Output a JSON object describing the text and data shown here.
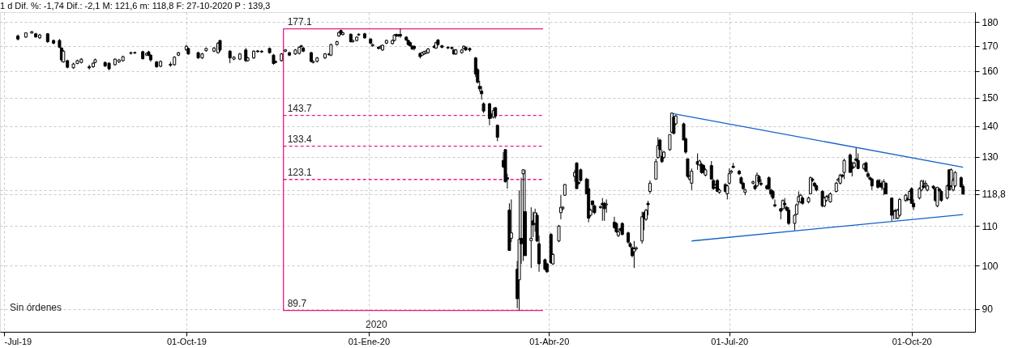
{
  "chart_data": {
    "type": "candlestick",
    "title": "1 d Dif. %: -1,74 Dif.: -2,1 M: 121,6 m: 118,8 F: 27-10-2020 P : 139,3",
    "color": "#000000",
    "x": [
      "2019-07-08",
      "2019-07-12",
      "2019-07-15",
      "2019-07-17",
      "2019-07-19",
      "2019-07-23",
      "2019-07-26",
      "2019-07-29",
      "2019-07-30",
      "2019-07-31",
      "2019-08-02",
      "2019-08-05",
      "2019-08-07",
      "2019-08-09",
      "2019-08-13",
      "2019-08-15",
      "2019-08-16",
      "2019-08-21",
      "2019-08-23",
      "2019-08-26",
      "2019-08-28",
      "2019-08-30",
      "2019-09-03",
      "2019-09-05",
      "2019-09-09",
      "2019-09-11",
      "2019-09-12",
      "2019-09-13",
      "2019-09-16",
      "2019-09-18",
      "2019-09-23",
      "2019-09-25",
      "2019-09-27",
      "2019-10-01",
      "2019-10-02",
      "2019-10-07",
      "2019-10-09",
      "2019-10-11",
      "2019-10-15",
      "2019-10-17",
      "2019-10-18",
      "2019-10-23",
      "2019-10-25",
      "2019-10-28",
      "2019-10-31",
      "2019-11-01",
      "2019-11-04",
      "2019-11-06",
      "2019-11-08",
      "2019-11-12",
      "2019-11-14",
      "2019-11-15",
      "2019-11-18",
      "2019-11-20",
      "2019-11-22",
      "2019-11-25",
      "2019-11-27",
      "2019-11-28",
      "2019-11-29",
      "2019-12-03",
      "2019-12-04",
      "2019-12-06",
      "2019-12-10",
      "2019-12-12",
      "2019-12-13",
      "2019-12-16",
      "2019-12-17",
      "2019-12-18",
      "2019-12-19",
      "2019-12-23",
      "2019-12-24",
      "2019-12-26",
      "2019-12-27",
      "2019-12-30",
      "2020-01-02",
      "2020-01-03",
      "2020-01-06",
      "2020-01-07",
      "2020-01-08",
      "2020-01-10",
      "2020-01-13",
      "2020-01-14",
      "2020-01-15",
      "2020-01-16",
      "2020-01-17",
      "2020-01-20",
      "2020-01-21",
      "2020-01-22",
      "2020-01-23",
      "2020-01-24",
      "2020-01-27",
      "2020-01-28",
      "2020-01-29",
      "2020-01-30",
      "2020-01-31",
      "2020-02-03",
      "2020-02-04",
      "2020-02-05",
      "2020-02-07",
      "2020-02-10",
      "2020-02-12",
      "2020-02-13",
      "2020-02-14",
      "2020-02-17",
      "2020-02-18",
      "2020-02-19",
      "2020-02-21",
      "2020-02-24",
      "2020-02-25",
      "2020-02-26",
      "2020-02-27",
      "2020-02-28",
      "2020-03-02",
      "2020-03-03",
      "2020-03-04",
      "2020-03-05",
      "2020-03-06",
      "2020-03-09",
      "2020-03-10",
      "2020-03-11",
      "2020-03-12",
      "2020-03-13",
      "2020-03-16",
      "2020-03-17",
      "2020-03-18",
      "2020-03-19",
      "2020-03-20",
      "2020-03-23",
      "2020-03-24",
      "2020-03-25",
      "2020-03-26",
      "2020-03-27",
      "2020-03-30",
      "2020-03-31",
      "2020-04-02",
      "2020-04-03",
      "2020-04-06",
      "2020-04-07",
      "2020-04-08",
      "2020-04-09",
      "2020-04-14",
      "2020-04-15",
      "2020-04-16",
      "2020-04-17",
      "2020-04-20",
      "2020-04-21",
      "2020-04-22",
      "2020-04-23",
      "2020-04-24",
      "2020-04-27",
      "2020-04-28",
      "2020-04-29",
      "2020-04-30",
      "2020-05-04",
      "2020-05-05",
      "2020-05-06",
      "2020-05-07",
      "2020-05-08",
      "2020-05-11",
      "2020-05-12",
      "2020-05-13",
      "2020-05-14",
      "2020-05-15",
      "2020-05-18",
      "2020-05-19",
      "2020-05-20",
      "2020-05-21",
      "2020-05-22",
      "2020-05-25",
      "2020-05-26",
      "2020-05-27",
      "2020-05-28",
      "2020-05-29",
      "2020-06-01",
      "2020-06-02",
      "2020-06-03",
      "2020-06-04",
      "2020-06-08",
      "2020-06-09",
      "2020-06-10",
      "2020-06-11",
      "2020-06-12",
      "2020-06-15",
      "2020-06-16",
      "2020-06-17",
      "2020-06-18",
      "2020-06-19",
      "2020-06-22",
      "2020-06-23",
      "2020-06-24",
      "2020-06-25",
      "2020-06-26",
      "2020-06-29",
      "2020-06-30",
      "2020-07-01",
      "2020-07-02",
      "2020-07-03",
      "2020-07-06",
      "2020-07-07",
      "2020-07-08",
      "2020-07-09",
      "2020-07-13",
      "2020-07-14",
      "2020-07-15",
      "2020-07-16",
      "2020-07-17",
      "2020-07-20",
      "2020-07-21",
      "2020-07-22",
      "2020-07-23",
      "2020-07-24",
      "2020-07-27",
      "2020-07-28",
      "2020-07-29",
      "2020-07-30",
      "2020-07-31",
      "2020-08-03",
      "2020-08-04",
      "2020-08-05",
      "2020-08-06",
      "2020-08-07",
      "2020-08-10",
      "2020-08-11",
      "2020-08-12",
      "2020-08-13",
      "2020-08-14",
      "2020-08-17",
      "2020-08-18",
      "2020-08-19",
      "2020-08-20",
      "2020-08-21",
      "2020-08-24",
      "2020-08-25",
      "2020-08-26",
      "2020-08-27",
      "2020-08-28",
      "2020-08-31",
      "2020-09-01",
      "2020-09-02",
      "2020-09-03",
      "2020-09-04",
      "2020-09-07",
      "2020-09-08",
      "2020-09-09",
      "2020-09-10",
      "2020-09-11",
      "2020-09-14",
      "2020-09-15",
      "2020-09-16",
      "2020-09-17",
      "2020-09-18",
      "2020-09-21",
      "2020-09-22",
      "2020-09-23",
      "2020-09-24",
      "2020-09-25",
      "2020-09-28",
      "2020-09-29",
      "2020-09-30",
      "2020-10-01",
      "2020-10-02",
      "2020-10-05",
      "2020-10-06",
      "2020-10-07",
      "2020-10-08",
      "2020-10-09",
      "2020-10-12",
      "2020-10-13",
      "2020-10-14",
      "2020-10-15",
      "2020-10-16",
      "2020-10-19",
      "2020-10-20",
      "2020-10-21",
      "2020-10-22",
      "2020-10-23",
      "2020-10-26",
      "2020-10-27"
    ],
    "ohlc": [
      [
        174.1,
        174.7,
        172.2,
        172.8
      ],
      [
        173.6,
        175.6,
        173.3,
        175.4
      ],
      [
        175.3,
        176.2,
        175.1,
        175.9
      ],
      [
        175.0,
        175.4,
        173.3,
        173.7
      ],
      [
        173.3,
        175.0,
        172.8,
        174.5
      ],
      [
        175.0,
        175.3,
        171.2,
        171.7
      ],
      [
        172.2,
        172.6,
        170.6,
        171.1
      ],
      [
        172.2,
        172.8,
        169.1,
        169.4
      ],
      [
        169.1,
        169.4,
        163.5,
        164.3
      ],
      [
        163.5,
        168.3,
        163.2,
        167.8
      ],
      [
        164.0,
        164.4,
        161.0,
        161.4
      ],
      [
        161.2,
        163.2,
        160.8,
        162.7
      ],
      [
        162.9,
        164.4,
        162.6,
        164.0
      ],
      [
        163.3,
        165.0,
        162.9,
        164.6
      ],
      [
        161.6,
        162.4,
        160.5,
        161.2
      ],
      [
        161.6,
        163.4,
        161.2,
        163.0
      ],
      [
        163.3,
        164.8,
        163.0,
        164.4
      ],
      [
        163.3,
        163.7,
        161.5,
        161.9
      ],
      [
        163.0,
        163.4,
        160.3,
        160.8
      ],
      [
        162.4,
        165.0,
        162.0,
        164.6
      ],
      [
        163.5,
        164.7,
        163.1,
        164.3
      ],
      [
        164.0,
        166.0,
        163.6,
        165.6
      ],
      [
        166.9,
        167.6,
        166.5,
        167.2
      ],
      [
        167.1,
        167.6,
        166.7,
        167.3
      ],
      [
        167.6,
        168.0,
        164.4,
        164.8
      ],
      [
        166.2,
        167.3,
        165.8,
        166.9
      ],
      [
        167.5,
        168.0,
        165.8,
        166.2
      ],
      [
        166.2,
        166.6,
        163.6,
        164.3
      ],
      [
        163.5,
        163.9,
        161.2,
        161.6
      ],
      [
        161.8,
        164.1,
        161.4,
        163.7
      ],
      [
        162.6,
        163.5,
        161.6,
        162.2
      ],
      [
        162.4,
        165.8,
        162.0,
        165.4
      ],
      [
        166.2,
        167.6,
        165.8,
        167.2
      ],
      [
        168.3,
        170.4,
        168.0,
        169.8
      ],
      [
        168.9,
        169.3,
        166.3,
        166.7
      ],
      [
        167.2,
        167.6,
        164.7,
        165.1
      ],
      [
        165.1,
        167.1,
        164.7,
        166.7
      ],
      [
        168.0,
        169.3,
        167.6,
        168.9
      ],
      [
        167.8,
        169.5,
        167.4,
        169.1
      ],
      [
        167.2,
        171.5,
        166.8,
        171.1
      ],
      [
        172.2,
        172.4,
        167.6,
        168.3
      ],
      [
        167.8,
        168.3,
        163.0,
        165.1
      ],
      [
        164.6,
        165.8,
        164.2,
        165.4
      ],
      [
        164.6,
        167.1,
        164.2,
        166.7
      ],
      [
        168.3,
        169.1,
        163.5,
        164.0
      ],
      [
        164.0,
        165.5,
        163.6,
        165.1
      ],
      [
        165.1,
        168.2,
        164.7,
        167.8
      ],
      [
        167.9,
        168.3,
        167.2,
        167.6
      ],
      [
        167.8,
        168.2,
        167.1,
        167.5
      ],
      [
        168.9,
        169.3,
        166.8,
        167.2
      ],
      [
        166.2,
        166.7,
        162.4,
        162.9
      ],
      [
        163.7,
        164.1,
        162.9,
        163.3
      ],
      [
        164.0,
        167.1,
        163.6,
        166.7
      ],
      [
        167.8,
        168.7,
        167.4,
        168.3
      ],
      [
        167.2,
        167.6,
        165.8,
        166.2
      ],
      [
        166.7,
        168.7,
        166.3,
        168.3
      ],
      [
        166.9,
        169.8,
        166.5,
        169.4
      ],
      [
        169.7,
        170.4,
        169.3,
        170.0
      ],
      [
        169.1,
        169.5,
        167.4,
        167.8
      ],
      [
        167.2,
        167.6,
        163.3,
        163.7
      ],
      [
        163.3,
        164.1,
        162.9,
        163.7
      ],
      [
        163.7,
        165.5,
        163.3,
        165.1
      ],
      [
        165.1,
        167.1,
        164.7,
        166.7
      ],
      [
        166.4,
        167.1,
        166.0,
        166.7
      ],
      [
        166.2,
        170.9,
        165.8,
        170.5
      ],
      [
        170.5,
        172.1,
        170.1,
        171.7
      ],
      [
        174.1,
        176.0,
        173.7,
        175.6
      ],
      [
        176.4,
        176.8,
        174.6,
        175.0
      ],
      [
        174.7,
        175.8,
        174.3,
        175.4
      ],
      [
        174.8,
        175.2,
        171.3,
        171.7
      ],
      [
        171.7,
        172.6,
        171.3,
        172.2
      ],
      [
        172.2,
        174.0,
        171.8,
        173.6
      ],
      [
        174.5,
        175.2,
        174.1,
        174.8
      ],
      [
        175.0,
        175.4,
        172.9,
        173.3
      ],
      [
        172.8,
        173.2,
        170.7,
        171.1
      ],
      [
        170.0,
        170.9,
        169.6,
        170.5
      ],
      [
        169.4,
        169.8,
        168.5,
        168.9
      ],
      [
        169.2,
        170.2,
        168.8,
        169.8
      ],
      [
        168.3,
        170.6,
        167.9,
        170.2
      ],
      [
        171.1,
        172.6,
        170.7,
        172.2
      ],
      [
        170.9,
        172.6,
        170.5,
        172.2
      ],
      [
        172.2,
        174.9,
        171.8,
        174.5
      ],
      [
        174.7,
        175.1,
        173.7,
        174.1
      ],
      [
        174.5,
        174.9,
        173.7,
        174.1
      ],
      [
        174.7,
        177.1,
        173.3,
        174.1
      ],
      [
        173.6,
        174.0,
        172.0,
        172.4
      ],
      [
        172.2,
        172.6,
        170.1,
        170.5
      ],
      [
        171.3,
        171.7,
        169.6,
        170.0
      ],
      [
        169.8,
        170.2,
        168.3,
        168.7
      ],
      [
        169.8,
        170.2,
        168.1,
        168.9
      ],
      [
        166.9,
        167.3,
        164.9,
        165.6
      ],
      [
        166.2,
        167.6,
        165.8,
        167.2
      ],
      [
        166.7,
        168.0,
        166.3,
        167.6
      ],
      [
        167.0,
        168.2,
        166.6,
        167.8
      ],
      [
        167.2,
        169.1,
        166.8,
        168.7
      ],
      [
        169.8,
        170.2,
        169.0,
        169.4
      ],
      [
        169.1,
        171.7,
        168.7,
        171.3
      ],
      [
        172.4,
        172.8,
        170.1,
        170.5
      ],
      [
        170.0,
        170.4,
        169.0,
        169.4
      ],
      [
        169.4,
        169.8,
        168.7,
        169.1
      ],
      [
        169.3,
        169.7,
        168.5,
        168.9
      ],
      [
        168.3,
        168.7,
        166.3,
        166.7
      ],
      [
        166.7,
        168.7,
        166.3,
        168.3
      ],
      [
        167.2,
        168.7,
        166.8,
        168.3
      ],
      [
        168.9,
        170.2,
        168.5,
        169.8
      ],
      [
        169.4,
        169.8,
        167.9,
        168.3
      ],
      [
        168.9,
        169.3,
        167.6,
        168.3
      ],
      [
        165.1,
        165.5,
        157.7,
        158.8
      ],
      [
        160.5,
        161.0,
        155.2,
        155.7
      ],
      [
        154.2,
        156.2,
        152.2,
        153.2
      ],
      [
        152.4,
        154.2,
        149.3,
        151.4
      ],
      [
        147.8,
        148.3,
        144.5,
        145.2
      ],
      [
        147.8,
        148.1,
        140.3,
        142.6
      ],
      [
        144.0,
        144.5,
        142.6,
        143.5
      ],
      [
        143.1,
        146.4,
        142.6,
        145.4
      ],
      [
        146.4,
        146.6,
        142.6,
        143.5
      ],
      [
        140.3,
        140.6,
        135.0,
        136.3
      ],
      [
        128.9,
        131.5,
        126.5,
        126.9
      ],
      [
        132.3,
        132.4,
        122.2,
        122.4
      ],
      [
        123.6,
        124.8,
        120.4,
        123.2
      ],
      [
        114.3,
        116.2,
        103.7,
        103.7
      ],
      [
        106.8,
        117.3,
        105.8,
        108.2
      ],
      [
        99.1,
        101.1,
        90.2,
        92.3
      ],
      [
        96.6,
        119.9,
        89.7,
        106.5
      ],
      [
        106.8,
        123.6,
        100.4,
        105.4
      ],
      [
        124.8,
        126.1,
        101.1,
        126.0
      ],
      [
        113.9,
        126.0,
        102.4,
        102.4
      ],
      [
        106.2,
        115.1,
        99.4,
        106.8
      ],
      [
        111.4,
        113.9,
        107.1,
        110.3
      ],
      [
        110.7,
        114.7,
        108.5,
        113.6
      ],
      [
        112.9,
        113.6,
        105.8,
        106.1
      ],
      [
        105.4,
        107.5,
        98.5,
        100.4
      ],
      [
        101.4,
        101.7,
        98.8,
        99.1
      ],
      [
        100.4,
        100.7,
        98.2,
        98.5
      ],
      [
        107.8,
        108.2,
        100.4,
        100.7
      ],
      [
        100.4,
        103.0,
        100.1,
        102.7
      ],
      [
        106.1,
        110.3,
        105.8,
        110.0
      ],
      [
        113.6,
        118.5,
        111.8,
        115.1
      ],
      [
        114.7,
        115.4,
        114.3,
        115.1
      ],
      [
        118.5,
        121.8,
        118.3,
        121.6
      ],
      [
        124.0,
        126.0,
        122.4,
        125.2
      ],
      [
        128.1,
        128.3,
        120.4,
        120.4
      ],
      [
        122.2,
        122.6,
        121.5,
        121.9
      ],
      [
        126.0,
        126.4,
        122.4,
        122.8
      ],
      [
        123.2,
        123.6,
        118.9,
        118.9
      ],
      [
        120.4,
        123.2,
        111.0,
        112.1
      ],
      [
        112.9,
        114.7,
        112.5,
        114.3
      ],
      [
        116.9,
        116.9,
        113.6,
        115.8
      ],
      [
        115.5,
        115.8,
        113.2,
        113.6
      ],
      [
        115.0,
        115.6,
        114.7,
        115.3
      ],
      [
        116.2,
        117.7,
        111.4,
        115.8
      ],
      [
        116.2,
        116.6,
        111.4,
        114.7
      ],
      [
        115.8,
        117.3,
        113.6,
        116.0
      ],
      [
        111.0,
        112.5,
        109.3,
        109.6
      ],
      [
        110.7,
        111.0,
        108.2,
        108.5
      ],
      [
        107.5,
        108.9,
        107.1,
        108.5
      ],
      [
        109.3,
        109.6,
        108.5,
        108.9
      ],
      [
        110.7,
        111.0,
        107.5,
        107.8
      ],
      [
        108.2,
        108.5,
        105.4,
        105.8
      ],
      [
        105.4,
        105.8,
        104.4,
        104.7
      ],
      [
        104.4,
        104.7,
        102.0,
        102.4
      ],
      [
        103.4,
        106.1,
        99.4,
        104.1
      ],
      [
        104.1,
        104.7,
        103.7,
        104.4
      ],
      [
        106.1,
        113.9,
        105.4,
        112.5
      ],
      [
        113.6,
        113.9,
        108.9,
        112.1
      ],
      [
        111.8,
        114.7,
        111.4,
        114.3
      ],
      [
        116.2,
        116.9,
        112.9,
        115.8
      ],
      [
        119.6,
        122.8,
        118.9,
        122.0
      ],
      [
        123.2,
        129.4,
        123.2,
        128.5
      ],
      [
        129.8,
        136.3,
        129.4,
        133.6
      ],
      [
        135.4,
        135.8,
        130.2,
        132.3
      ],
      [
        130.2,
        132.3,
        128.1,
        128.5
      ],
      [
        129.8,
        131.9,
        129.4,
        131.5
      ],
      [
        132.3,
        137.2,
        131.9,
        137.2
      ],
      [
        138.0,
        144.6,
        137.6,
        144.5
      ],
      [
        143.1,
        143.5,
        137.2,
        137.6
      ],
      [
        140.8,
        143.9,
        140.3,
        143.5
      ],
      [
        140.8,
        141.2,
        135.4,
        135.4
      ],
      [
        135.8,
        136.3,
        131.0,
        131.5
      ],
      [
        129.4,
        129.4,
        123.6,
        124.0
      ],
      [
        123.2,
        124.4,
        122.8,
        124.0
      ],
      [
        122.0,
        126.4,
        120.0,
        125.6
      ],
      [
        128.5,
        131.1,
        126.0,
        127.7
      ],
      [
        127.5,
        129.1,
        127.1,
        128.7
      ],
      [
        127.7,
        128.1,
        124.8,
        125.2
      ],
      [
        127.3,
        127.7,
        124.8,
        125.2
      ],
      [
        124.4,
        126.4,
        124.0,
        126.0
      ],
      [
        127.3,
        128.7,
        123.2,
        123.2
      ],
      [
        122.8,
        123.2,
        120.0,
        120.4
      ],
      [
        120.8,
        121.8,
        120.4,
        121.4
      ],
      [
        122.8,
        123.2,
        119.6,
        119.6
      ],
      [
        119.3,
        120.4,
        118.9,
        120.0
      ],
      [
        121.6,
        122.0,
        119.3,
        119.6
      ],
      [
        118.9,
        121.6,
        117.3,
        121.2
      ],
      [
        122.0,
        126.4,
        121.6,
        124.8
      ],
      [
        125.2,
        126.0,
        124.8,
        125.6
      ],
      [
        127.1,
        128.1,
        126.5,
        126.7
      ],
      [
        125.6,
        126.0,
        124.4,
        124.8
      ],
      [
        123.6,
        124.0,
        121.6,
        122.0
      ],
      [
        122.0,
        122.4,
        120.0,
        120.4
      ],
      [
        119.3,
        120.4,
        118.5,
        120.0
      ],
      [
        122.0,
        122.8,
        121.6,
        122.4
      ],
      [
        121.2,
        121.6,
        120.0,
        120.4
      ],
      [
        121.2,
        125.2,
        120.8,
        124.4
      ],
      [
        124.0,
        124.4,
        122.0,
        122.4
      ],
      [
        122.0,
        123.2,
        121.2,
        121.6
      ],
      [
        121.2,
        121.6,
        120.0,
        120.4
      ],
      [
        123.6,
        124.0,
        120.0,
        120.4
      ],
      [
        120.0,
        120.4,
        118.1,
        118.9
      ],
      [
        119.6,
        120.0,
        117.3,
        117.7
      ],
      [
        115.8,
        117.3,
        115.1,
        115.5
      ],
      [
        114.7,
        114.9,
        111.8,
        114.0
      ],
      [
        114.7,
        117.3,
        114.3,
        117.0
      ],
      [
        116.2,
        117.7,
        114.7,
        115.8
      ],
      [
        115.1,
        115.5,
        114.0,
        114.3
      ],
      [
        114.3,
        115.1,
        110.3,
        110.7
      ],
      [
        110.7,
        113.2,
        108.9,
        112.9
      ],
      [
        113.2,
        116.2,
        112.9,
        115.8
      ],
      [
        116.6,
        119.6,
        115.8,
        118.1
      ],
      [
        116.6,
        118.9,
        116.2,
        118.5
      ],
      [
        117.7,
        118.1,
        115.8,
        116.2
      ],
      [
        116.6,
        118.1,
        116.2,
        117.7
      ],
      [
        118.9,
        124.0,
        118.9,
        123.6
      ],
      [
        123.2,
        123.6,
        122.4,
        122.8
      ],
      [
        122.0,
        122.4,
        120.8,
        121.2
      ],
      [
        121.2,
        121.6,
        119.6,
        120.0
      ],
      [
        119.6,
        120.0,
        115.1,
        115.5
      ],
      [
        115.5,
        118.1,
        115.1,
        117.7
      ],
      [
        117.0,
        118.5,
        116.6,
        118.1
      ],
      [
        118.0,
        118.7,
        117.6,
        118.3
      ],
      [
        116.6,
        119.3,
        116.4,
        118.9
      ],
      [
        119.6,
        122.4,
        119.3,
        122.0
      ],
      [
        122.8,
        123.6,
        122.4,
        123.2
      ],
      [
        122.0,
        124.8,
        121.6,
        124.4
      ],
      [
        124.4,
        124.8,
        123.6,
        124.0
      ],
      [
        125.2,
        129.4,
        123.2,
        128.9
      ],
      [
        130.6,
        131.1,
        125.2,
        125.2
      ],
      [
        126.9,
        128.5,
        124.0,
        126.4
      ],
      [
        126.9,
        128.5,
        126.5,
        128.1
      ],
      [
        129.4,
        132.8,
        128.5,
        128.9
      ],
      [
        128.9,
        131.1,
        126.2,
        126.4
      ],
      [
        126.4,
        128.1,
        126.0,
        127.7
      ],
      [
        128.1,
        128.5,
        125.2,
        125.6
      ],
      [
        124.8,
        125.6,
        123.6,
        124.0
      ],
      [
        123.6,
        124.0,
        122.8,
        123.2
      ],
      [
        123.2,
        123.6,
        120.0,
        121.2
      ],
      [
        122.8,
        123.2,
        120.4,
        120.8
      ],
      [
        122.0,
        123.2,
        120.8,
        121.2
      ],
      [
        122.0,
        122.8,
        120.0,
        120.8
      ],
      [
        120.4,
        123.2,
        118.5,
        122.4
      ],
      [
        122.0,
        122.2,
        118.9,
        118.9
      ],
      [
        117.7,
        117.7,
        111.4,
        112.9
      ],
      [
        114.0,
        114.3,
        111.8,
        114.2
      ],
      [
        114.2,
        114.7,
        111.8,
        114.0
      ],
      [
        112.1,
        114.7,
        111.8,
        114.3
      ],
      [
        112.9,
        117.7,
        112.5,
        117.3
      ],
      [
        117.0,
        118.9,
        116.6,
        118.5
      ],
      [
        117.5,
        117.9,
        116.8,
        117.2
      ],
      [
        117.3,
        120.0,
        117.0,
        119.6
      ],
      [
        120.4,
        120.8,
        116.2,
        116.2
      ],
      [
        116.2,
        117.3,
        114.3,
        115.2
      ],
      [
        117.7,
        120.8,
        117.3,
        120.4
      ],
      [
        120.0,
        123.0,
        119.6,
        122.6
      ],
      [
        121.2,
        123.0,
        120.4,
        120.8
      ],
      [
        121.6,
        122.8,
        120.4,
        122.0
      ],
      [
        120.0,
        121.6,
        119.6,
        121.2
      ],
      [
        121.1,
        121.4,
        120.2,
        120.6
      ],
      [
        120.4,
        120.8,
        116.6,
        117.0
      ],
      [
        115.5,
        120.8,
        115.1,
        120.8
      ],
      [
        120.3,
        120.6,
        119.5,
        119.8
      ],
      [
        119.6,
        120.0,
        116.6,
        117.0
      ],
      [
        117.7,
        121.6,
        117.3,
        121.2
      ],
      [
        126.0,
        126.2,
        120.0,
        120.0
      ],
      [
        121.2,
        126.4,
        120.8,
        126.0
      ],
      [
        120.0,
        123.6,
        119.6,
        122.8
      ],
      [
        121.2,
        125.6,
        120.8,
        125.2
      ],
      [
        123.6,
        124.0,
        120.8,
        120.9
      ],
      [
        121.0,
        121.6,
        118.8,
        118.8
      ]
    ],
    "series": [
      {
        "type": "line",
        "color": "#ec1a86",
        "x": [
          "2020-03-29",
          "2019-11-19",
          "2019-11-19",
          "2020-03-29"
        ],
        "values": [
          177.1,
          177.1,
          89.7,
          89.7
        ]
      },
      {
        "type": "line",
        "color": "#ec1a86",
        "line_style": "dashed",
        "x": [
          "2019-11-19",
          "2020-03-29"
        ],
        "values": [
          143.7,
          143.7
        ]
      },
      {
        "type": "line",
        "color": "#ec1a86",
        "line_style": "dashed",
        "x": [
          "2019-11-19",
          "2020-03-29"
        ],
        "values": [
          133.4,
          133.4
        ]
      },
      {
        "type": "line",
        "color": "#ec1a86",
        "line_style": "dashed",
        "x": [
          "2019-11-19",
          "2020-03-29"
        ],
        "values": [
          123.1,
          123.1
        ]
      },
      {
        "type": "line",
        "color": "#1262c9",
        "x": [
          "2020-06-02",
          "2020-10-27"
        ],
        "values": [
          144.4,
          126.8
        ]
      },
      {
        "type": "line",
        "color": "#1262c9",
        "x": [
          "2020-06-12",
          "2020-10-27"
        ],
        "values": [
          106.1,
          113.1
        ]
      }
    ],
    "annotations": [
      {
        "text": "177.1",
        "x": "2019-11-19",
        "y": 177.1
      },
      {
        "text": "143.7",
        "x": "2019-11-19",
        "y": 143.7
      },
      {
        "text": "133.4",
        "x": "2019-11-19",
        "y": 133.4
      },
      {
        "text": "123.1",
        "x": "2019-11-19",
        "y": 123.1
      },
      {
        "text": "89.7",
        "x": "2019-11-19",
        "y": 89.7
      },
      "2020",
      "Sin órdenes"
    ],
    "xlim": [
      "2019-07-01",
      "2020-10-31"
    ],
    "xticks": [
      {
        "value": "2019-07-01",
        "label": "-Jul-19"
      },
      {
        "value": "2019-10-01",
        "label": "01-Oct-19"
      },
      {
        "value": "2020-01-01",
        "label": "01-Ene-20"
      },
      {
        "value": "2020-04-01",
        "label": "01-Abr-20"
      },
      {
        "value": "2020-07-01",
        "label": "01-Jul-20"
      },
      {
        "value": "2020-10-01",
        "label": "01-Oct-20"
      }
    ],
    "ylim": [
      85.2,
      184.4
    ],
    "yticks": [
      90,
      100,
      110,
      {
        "value": 118.8,
        "label": "118,8"
      },
      {
        "value": 120,
        "label": null
      },
      130,
      140,
      150,
      160,
      170,
      180
    ],
    "log": "y",
    "grid": true
  }
}
